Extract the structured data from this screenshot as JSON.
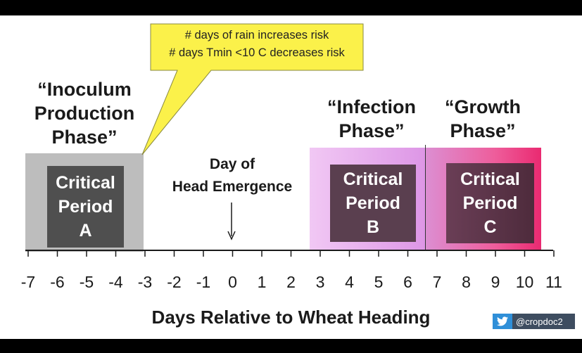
{
  "callout": {
    "lines": [
      "# days of rain increases risk",
      "# days Tmin <10 C decreases risk"
    ],
    "fill": "#fbf14a"
  },
  "phases": {
    "inoculum": {
      "lines": [
        "“Inoculum",
        "Production",
        "Phase”"
      ]
    },
    "infection": {
      "lines": [
        "“Infection",
        "Phase”"
      ]
    },
    "growth": {
      "lines": [
        "“Growth",
        "Phase”"
      ]
    }
  },
  "critical_periods": [
    {
      "lines": [
        "Critical",
        "Period",
        "A"
      ],
      "start": -7.0,
      "end": -3.0
    },
    {
      "lines": [
        "Critical",
        "Period",
        "B"
      ],
      "start": 2.6,
      "end": 6.6
    },
    {
      "lines": [
        "Critical",
        "Period",
        "C"
      ],
      "start": 6.6,
      "end": 10.5
    }
  ],
  "heading_marker": {
    "lines": [
      "Day of",
      "Head Emergence"
    ],
    "day": 0
  },
  "axis": {
    "title": "Days Relative to Wheat Heading",
    "ticks": [
      "-7",
      "-6",
      "-5",
      "-4",
      "-3",
      "-2",
      "-1",
      "0",
      "1",
      "2",
      "3",
      "4",
      "5",
      "6",
      "7",
      "8",
      "9",
      "10",
      "11"
    ],
    "min": -7,
    "max": 11
  },
  "watermark": {
    "handle": "@cropdoc2",
    "icon": "twitter-bird-icon"
  }
}
